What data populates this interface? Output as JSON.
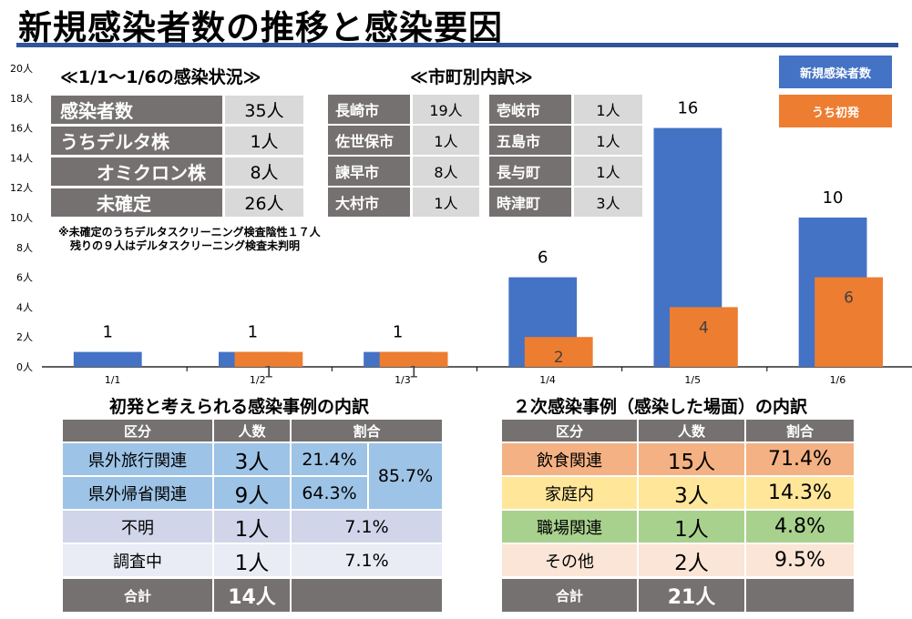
{
  "title": "新規感染者数の推移と感染要因",
  "status_panel": {
    "title": "≪1/1～1/6の感染状況≫",
    "rows": [
      {
        "label": "感染者数",
        "value": "35人"
      },
      {
        "label": "うちデルタ株",
        "value": "1人"
      },
      {
        "label": "オミクロン株",
        "value": "8人"
      },
      {
        "label": "未確定",
        "value": "26人"
      }
    ],
    "note_line1": "※未確定のうちデルタスクリーニング検査陰性１７人",
    "note_line2": "残りの９人はデルタスクリーニング検査未判明"
  },
  "city_panel": {
    "title": "≪市町別内訳≫",
    "left": [
      {
        "city": "長崎市",
        "value": "19人"
      },
      {
        "city": "佐世保市",
        "value": "1人"
      },
      {
        "city": "諫早市",
        "value": "8人"
      },
      {
        "city": "大村市",
        "value": "1人"
      }
    ],
    "right": [
      {
        "city": "壱岐市",
        "value": "1人"
      },
      {
        "city": "五島市",
        "value": "1人"
      },
      {
        "city": "長与町",
        "value": "1人"
      },
      {
        "city": "時津町",
        "value": "3人"
      }
    ]
  },
  "legend": {
    "series1": "新規感染者数",
    "series2": "うち初発",
    "color1": "#4472c4",
    "color2": "#ed7d31"
  },
  "chart_data": {
    "type": "bar",
    "categories": [
      "1/1",
      "1/2",
      "1/3",
      "1/4",
      "1/5",
      "1/6"
    ],
    "series": [
      {
        "name": "新規感染者数",
        "values": [
          1,
          1,
          1,
          6,
          16,
          10
        ],
        "labels": [
          "1",
          "1",
          "1",
          "6",
          "16",
          "10"
        ]
      },
      {
        "name": "うち初発",
        "values": [
          0,
          1,
          1,
          2,
          4,
          6
        ],
        "labels": [
          "",
          "1",
          "1",
          "2",
          "4",
          "6"
        ]
      }
    ],
    "ylim": [
      0,
      20
    ],
    "yticks": [
      "0人",
      "2人",
      "4人",
      "6人",
      "8人",
      "10人",
      "12人",
      "14人",
      "16人",
      "18人",
      "20人"
    ],
    "xlabel": "",
    "ylabel": ""
  },
  "primary_table": {
    "title": "初発と考えられる感染事例の内訳",
    "headers": [
      "区分",
      "人数",
      "割合"
    ],
    "rows": [
      {
        "cat": "県外旅行関連",
        "count": "3人",
        "ratio": "21.4%"
      },
      {
        "cat": "県外帰省関連",
        "count": "9人",
        "ratio": "64.3%"
      },
      {
        "cat": "不明",
        "count": "1人",
        "ratio": "7.1%"
      },
      {
        "cat": "調査中",
        "count": "1人",
        "ratio": "7.1%"
      }
    ],
    "merged_ratio": "85.7%",
    "total_label": "合計",
    "total_count": "14人"
  },
  "secondary_table": {
    "title": "２次感染事例（感染した場面）の内訳",
    "headers": [
      "区分",
      "人数",
      "割合"
    ],
    "rows": [
      {
        "cat": "飲食関連",
        "count": "15人",
        "ratio": "71.4%"
      },
      {
        "cat": "家庭内",
        "count": "3人",
        "ratio": "14.3%"
      },
      {
        "cat": "職場関連",
        "count": "1人",
        "ratio": "4.8%"
      },
      {
        "cat": "その他",
        "count": "2人",
        "ratio": "9.5%"
      }
    ],
    "total_label": "合計",
    "total_count": "21人"
  }
}
